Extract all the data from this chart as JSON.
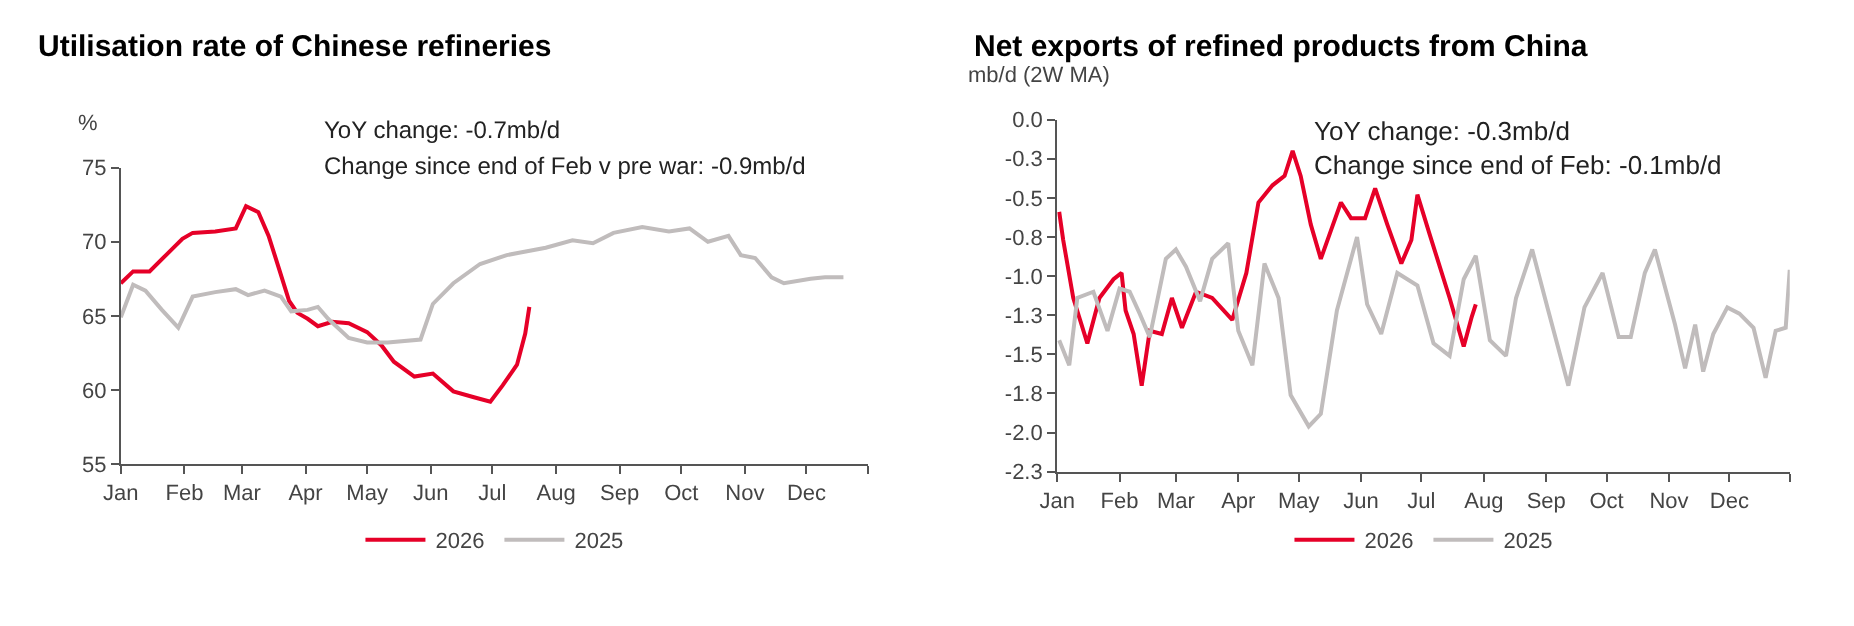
{
  "chart_data": [
    {
      "type": "line",
      "title": "Utilisation rate of Chinese refineries",
      "ylabel": "%",
      "annotations": [
        "YoY change: -0.7mb/d",
        "Change since end of Feb v pre war: -0.9mb/d"
      ],
      "xlim": [
        "--01-01",
        "--12-31"
      ],
      "xticks": [
        {
          "value": "--01-01",
          "label": "Jan"
        },
        {
          "value": "--02-01",
          "label": "Feb"
        },
        {
          "value": "--03-01",
          "label": "Mar"
        },
        {
          "value": "--04-01",
          "label": "Apr"
        },
        {
          "value": "--05-01",
          "label": "May"
        },
        {
          "value": "--06-01",
          "label": "Jun"
        },
        {
          "value": "--07-01",
          "label": "Jul"
        },
        {
          "value": "--08-01",
          "label": "Aug"
        },
        {
          "value": "--09-01",
          "label": "Sep"
        },
        {
          "value": "--10-01",
          "label": "Oct"
        },
        {
          "value": "--11-01",
          "label": "Nov"
        },
        {
          "value": "--12-01",
          "label": "Dec"
        },
        {
          "value": "--12-31",
          "label": null
        }
      ],
      "ylim": [
        55,
        75
      ],
      "yticks": [
        55,
        60,
        65,
        70,
        75
      ],
      "legend": "bottom",
      "marker": "none",
      "line_style": "solid",
      "series": [
        {
          "name": "2026",
          "color": "#e60028",
          "x": [
            "--01-01",
            "--01-07",
            "--01-15",
            "--01-23",
            "--01-31",
            "--02-05",
            "--02-16",
            "--02-26",
            "--03-03",
            "--03-09",
            "--03-14",
            "--03-19",
            "--03-24",
            "--03-28",
            "--04-02",
            "--04-07",
            "--04-14",
            "--04-22",
            "--05-01",
            "--05-08",
            "--05-14",
            "--05-24",
            "--06-02",
            "--06-12",
            "--06-22",
            "--06-30",
            "--07-06",
            "--07-13",
            "--07-17",
            "--07-19"
          ],
          "values": [
            67.2,
            68.0,
            68.0,
            69.1,
            70.2,
            70.6,
            70.7,
            70.9,
            72.4,
            72.0,
            70.4,
            68.2,
            66.0,
            65.2,
            64.8,
            64.3,
            64.6,
            64.5,
            63.9,
            63.0,
            61.9,
            60.9,
            61.1,
            59.9,
            59.5,
            59.2,
            60.3,
            61.7,
            63.8,
            65.6
          ]
        },
        {
          "name": "2025",
          "color": "#c0bcbc",
          "x": [
            "--01-01",
            "--01-07",
            "--01-13",
            "--01-21",
            "--01-29",
            "--02-05",
            "--02-16",
            "--02-26",
            "--03-04",
            "--03-12",
            "--03-20",
            "--03-25",
            "--04-02",
            "--04-07",
            "--04-12",
            "--04-22",
            "--05-01",
            "--05-11",
            "--05-27",
            "--06-02",
            "--06-12",
            "--06-25",
            "--07-08",
            "--07-27",
            "--08-09",
            "--08-19",
            "--08-29",
            "--09-12",
            "--09-25",
            "--10-05",
            "--10-14",
            "--10-24",
            "--10-30",
            "--11-06",
            "--11-14",
            "--11-20",
            "--12-03",
            "--12-10",
            "--12-19"
          ],
          "values": [
            64.9,
            67.1,
            66.7,
            65.4,
            64.2,
            66.3,
            66.6,
            66.8,
            66.4,
            66.7,
            66.3,
            65.3,
            65.4,
            65.6,
            64.8,
            63.5,
            63.2,
            63.2,
            63.4,
            65.8,
            67.2,
            68.5,
            69.1,
            69.6,
            70.1,
            69.9,
            70.6,
            71.0,
            70.7,
            70.9,
            70.0,
            70.4,
            69.1,
            68.9,
            67.6,
            67.2,
            67.5,
            67.6,
            67.6
          ]
        }
      ]
    },
    {
      "type": "line",
      "title": "Net exports of refined products from China",
      "ylabel": "mb/d (2W MA)",
      "annotations": [
        "YoY change: -0.3mb/d",
        "Change since end of Feb: -0.1mb/d"
      ],
      "xlim": [
        "--01-01",
        "--12-31"
      ],
      "xticks": [
        {
          "value": "--01-01",
          "label": "Jan"
        },
        {
          "value": "--02-01",
          "label": "Feb"
        },
        {
          "value": "--03-01",
          "label": "Mar"
        },
        {
          "value": "--04-01",
          "label": "Apr"
        },
        {
          "value": "--05-01",
          "label": "May"
        },
        {
          "value": "--06-01",
          "label": "Jun"
        },
        {
          "value": "--07-01",
          "label": "Jul"
        },
        {
          "value": "--08-01",
          "label": "Aug"
        },
        {
          "value": "--09-01",
          "label": "Sep"
        },
        {
          "value": "--10-01",
          "label": "Oct"
        },
        {
          "value": "--11-01",
          "label": "Nov"
        },
        {
          "value": "--12-01",
          "label": "Dec"
        },
        {
          "value": "--12-31",
          "label": null
        }
      ],
      "ylim": [
        -2.25,
        0
      ],
      "yticks": [
        {
          "value": 0,
          "label": "0.0"
        },
        {
          "value": -0.25,
          "label": "-0.3"
        },
        {
          "value": -0.5,
          "label": "-0.5"
        },
        {
          "value": -0.75,
          "label": "-0.8"
        },
        {
          "value": -1.0,
          "label": "-1.0"
        },
        {
          "value": -1.25,
          "label": "-1.3"
        },
        {
          "value": -1.5,
          "label": "-1.5"
        },
        {
          "value": -1.75,
          "label": "-1.8"
        },
        {
          "value": -2.0,
          "label": "-2.0"
        },
        {
          "value": -2.25,
          "label": "-2.3"
        }
      ],
      "legend": "bottom",
      "marker": "none",
      "line_style": "solid",
      "series": [
        {
          "name": "2026",
          "color": "#e60028",
          "x": [
            "--01-02",
            "--01-04",
            "--01-09",
            "--01-16",
            "--01-22",
            "--01-29",
            "--02-02",
            "--02-04",
            "--02-08",
            "--02-12",
            "--02-16",
            "--02-22",
            "--02-27",
            "--03-04",
            "--03-11",
            "--03-19",
            "--03-29",
            "--04-05",
            "--04-11",
            "--04-18",
            "--04-24",
            "--04-28",
            "--05-02",
            "--05-07",
            "--05-12",
            "--05-17",
            "--05-22",
            "--05-27",
            "--06-03",
            "--06-08",
            "--06-14",
            "--06-21",
            "--06-26",
            "--06-29",
            "--07-05",
            "--07-15",
            "--07-22",
            "--07-26",
            "--07-28"
          ],
          "values": [
            -0.59,
            -0.77,
            -1.14,
            -1.43,
            -1.14,
            -1.02,
            -0.98,
            -1.22,
            -1.37,
            -1.7,
            -1.35,
            -1.37,
            -1.14,
            -1.33,
            -1.1,
            -1.14,
            -1.28,
            -0.98,
            -0.53,
            -0.42,
            -0.36,
            -0.2,
            -0.36,
            -0.67,
            -0.89,
            -0.71,
            -0.53,
            -0.63,
            -0.63,
            -0.44,
            -0.67,
            -0.92,
            -0.77,
            -0.48,
            -0.73,
            -1.14,
            -1.45,
            -1.26,
            -1.18
          ]
        },
        {
          "name": "2025",
          "color": "#c0bcbc",
          "x": [
            "--01-02",
            "--01-07",
            "--01-11",
            "--01-19",
            "--01-26",
            "--02-01",
            "--02-06",
            "--02-11",
            "--02-16",
            "--02-24",
            "--03-01",
            "--03-06",
            "--03-13",
            "--03-19",
            "--03-27",
            "--04-01",
            "--04-08",
            "--04-14",
            "--04-21",
            "--04-27",
            "--05-06",
            "--05-12",
            "--05-20",
            "--05-30",
            "--06-04",
            "--06-11",
            "--06-19",
            "--06-29",
            "--07-07",
            "--07-15",
            "--07-22",
            "--07-28",
            "--08-04",
            "--08-12",
            "--08-17",
            "--08-25",
            "--09-02",
            "--09-12",
            "--09-20",
            "--09-29",
            "--10-07",
            "--10-13",
            "--10-20",
            "--10-25",
            "--11-04",
            "--11-09",
            "--11-14",
            "--11-18",
            "--11-23",
            "--11-30",
            "--12-06",
            "--12-13",
            "--12-19",
            "--12-24",
            "--12-29",
            "--12-31"
          ],
          "values": [
            -1.41,
            -1.57,
            -1.14,
            -1.1,
            -1.35,
            -1.08,
            -1.1,
            -1.24,
            -1.39,
            -0.89,
            -0.83,
            -0.94,
            -1.16,
            -0.89,
            -0.79,
            -1.35,
            -1.57,
            -0.92,
            -1.14,
            -1.76,
            -1.96,
            -1.88,
            -1.22,
            -0.75,
            -1.18,
            -1.37,
            -0.98,
            -1.06,
            -1.43,
            -1.51,
            -1.02,
            -0.87,
            -1.41,
            -1.51,
            -1.14,
            -0.83,
            -1.22,
            -1.7,
            -1.2,
            -0.98,
            -1.39,
            -1.39,
            -0.98,
            -0.83,
            -1.31,
            -1.59,
            -1.31,
            -1.61,
            -1.37,
            -1.2,
            -1.24,
            -1.33,
            -1.65,
            -1.35,
            -1.33,
            -0.96
          ]
        }
      ]
    }
  ]
}
